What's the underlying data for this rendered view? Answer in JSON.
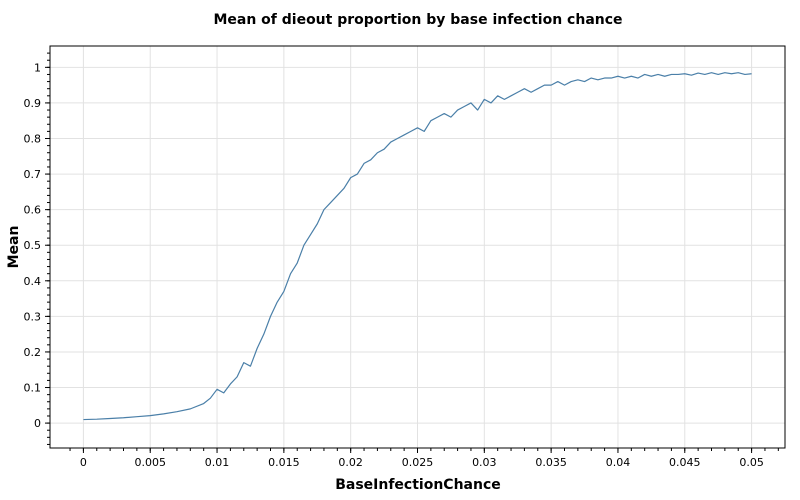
{
  "colors": {
    "series": "#4a7fa8",
    "grid": "#e2e2e2",
    "frame": "#000000"
  },
  "chart_data": {
    "type": "line",
    "title": "Mean of dieout proportion by base infection chance",
    "xlabel": "BaseInfectionChance",
    "ylabel": "Mean",
    "xlim": [
      -0.0025,
      0.0525
    ],
    "ylim": [
      -0.07,
      1.06
    ],
    "grid": true,
    "xticks": [
      0,
      0.005,
      0.01,
      0.015,
      0.02,
      0.025,
      0.03,
      0.035,
      0.04,
      0.045,
      0.05
    ],
    "xtick_labels": [
      "0",
      "0.005",
      "0.01",
      "0.015",
      "0.02",
      "0.025",
      "0.03",
      "0.035",
      "0.04",
      "0.045",
      "0.05"
    ],
    "yticks": [
      0,
      0.1,
      0.2,
      0.3,
      0.4,
      0.5,
      0.6,
      0.7,
      0.8,
      0.9,
      1
    ],
    "ytick_labels": [
      "0",
      "0.1",
      "0.2",
      "0.3",
      "0.4",
      "0.5",
      "0.6",
      "0.7",
      "0.8",
      "0.9",
      "1"
    ],
    "series": [
      {
        "x": [
          0,
          0.001,
          0.002,
          0.003,
          0.004,
          0.005,
          0.006,
          0.007,
          0.008,
          0.009,
          0.0095,
          0.01,
          0.0105,
          0.011,
          0.0115,
          0.012,
          0.0125,
          0.013,
          0.0135,
          0.014,
          0.0145,
          0.015,
          0.0155,
          0.016,
          0.0165,
          0.017,
          0.0175,
          0.018,
          0.0185,
          0.019,
          0.0195,
          0.02,
          0.0205,
          0.021,
          0.0215,
          0.022,
          0.0225,
          0.023,
          0.0235,
          0.024,
          0.0245,
          0.025,
          0.0255,
          0.026,
          0.0265,
          0.027,
          0.0275,
          0.028,
          0.0285,
          0.029,
          0.0295,
          0.03,
          0.0305,
          0.031,
          0.0315,
          0.032,
          0.0325,
          0.033,
          0.0335,
          0.034,
          0.0345,
          0.035,
          0.0355,
          0.036,
          0.0365,
          0.037,
          0.0375,
          0.038,
          0.0385,
          0.039,
          0.0395,
          0.04,
          0.0405,
          0.041,
          0.0415,
          0.042,
          0.0425,
          0.043,
          0.0435,
          0.044,
          0.0445,
          0.045,
          0.0455,
          0.046,
          0.0465,
          0.047,
          0.0475,
          0.048,
          0.0485,
          0.049,
          0.0495,
          0.05
        ],
        "values": [
          0.01,
          0.011,
          0.013,
          0.015,
          0.018,
          0.021,
          0.026,
          0.032,
          0.04,
          0.055,
          0.07,
          0.095,
          0.085,
          0.11,
          0.13,
          0.17,
          0.16,
          0.21,
          0.25,
          0.3,
          0.34,
          0.37,
          0.42,
          0.45,
          0.5,
          0.53,
          0.56,
          0.6,
          0.62,
          0.64,
          0.66,
          0.69,
          0.7,
          0.73,
          0.74,
          0.76,
          0.77,
          0.79,
          0.8,
          0.81,
          0.82,
          0.83,
          0.82,
          0.85,
          0.86,
          0.87,
          0.86,
          0.88,
          0.89,
          0.9,
          0.88,
          0.91,
          0.9,
          0.92,
          0.91,
          0.92,
          0.93,
          0.94,
          0.93,
          0.94,
          0.95,
          0.95,
          0.96,
          0.95,
          0.96,
          0.965,
          0.96,
          0.97,
          0.965,
          0.97,
          0.97,
          0.975,
          0.97,
          0.975,
          0.97,
          0.98,
          0.975,
          0.98,
          0.975,
          0.98,
          0.98,
          0.982,
          0.978,
          0.984,
          0.98,
          0.985,
          0.98,
          0.985,
          0.982,
          0.985,
          0.98,
          0.982
        ]
      }
    ]
  }
}
